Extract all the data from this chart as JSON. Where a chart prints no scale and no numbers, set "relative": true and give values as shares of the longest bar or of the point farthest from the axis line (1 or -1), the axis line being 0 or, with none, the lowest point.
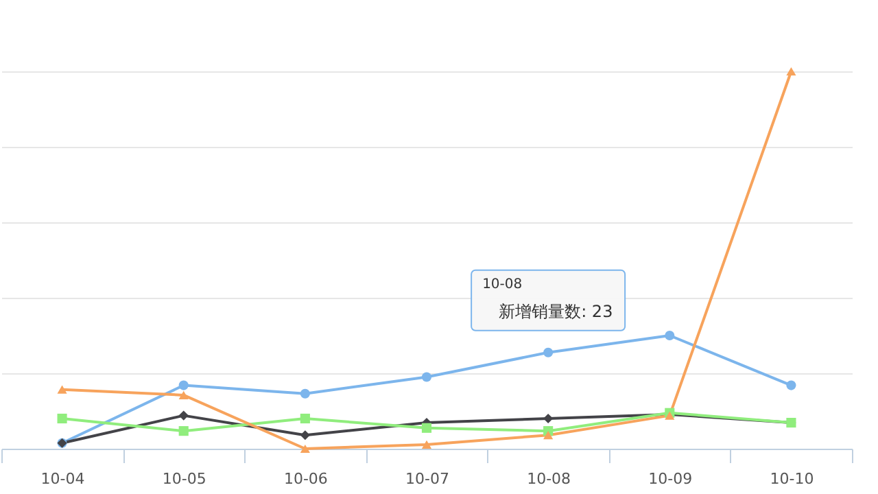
{
  "chart_data": {
    "type": "line",
    "relative": true,
    "grid": "y",
    "categories": [
      "10-04",
      "10-05",
      "10-06",
      "10-07",
      "10-08",
      "10-09",
      "10-10"
    ],
    "series": [
      {
        "color": "#7cb5ec",
        "marker": "circle",
        "values": [
          0.015,
          0.168,
          0.146,
          0.19,
          0.255,
          0.3,
          0.168
        ]
      },
      {
        "color": "#434348",
        "marker": "diamond",
        "values": [
          0.015,
          0.088,
          0.036,
          0.069,
          0.08,
          0.091,
          0.069
        ]
      },
      {
        "color": "#90ed7d",
        "marker": "square",
        "values": [
          0.08,
          0.047,
          0.08,
          0.055,
          0.047,
          0.095,
          0.069
        ]
      },
      {
        "color": "#f7a35c",
        "marker": "triangle",
        "values": [
          0.157,
          0.142,
          0,
          0.011,
          0.036,
          0.088,
          1
        ]
      }
    ],
    "annotations": [
      "10-08",
      {
        "text": "新增销量数: 23",
        "x": "10-08",
        "y": 0.255
      }
    ]
  }
}
